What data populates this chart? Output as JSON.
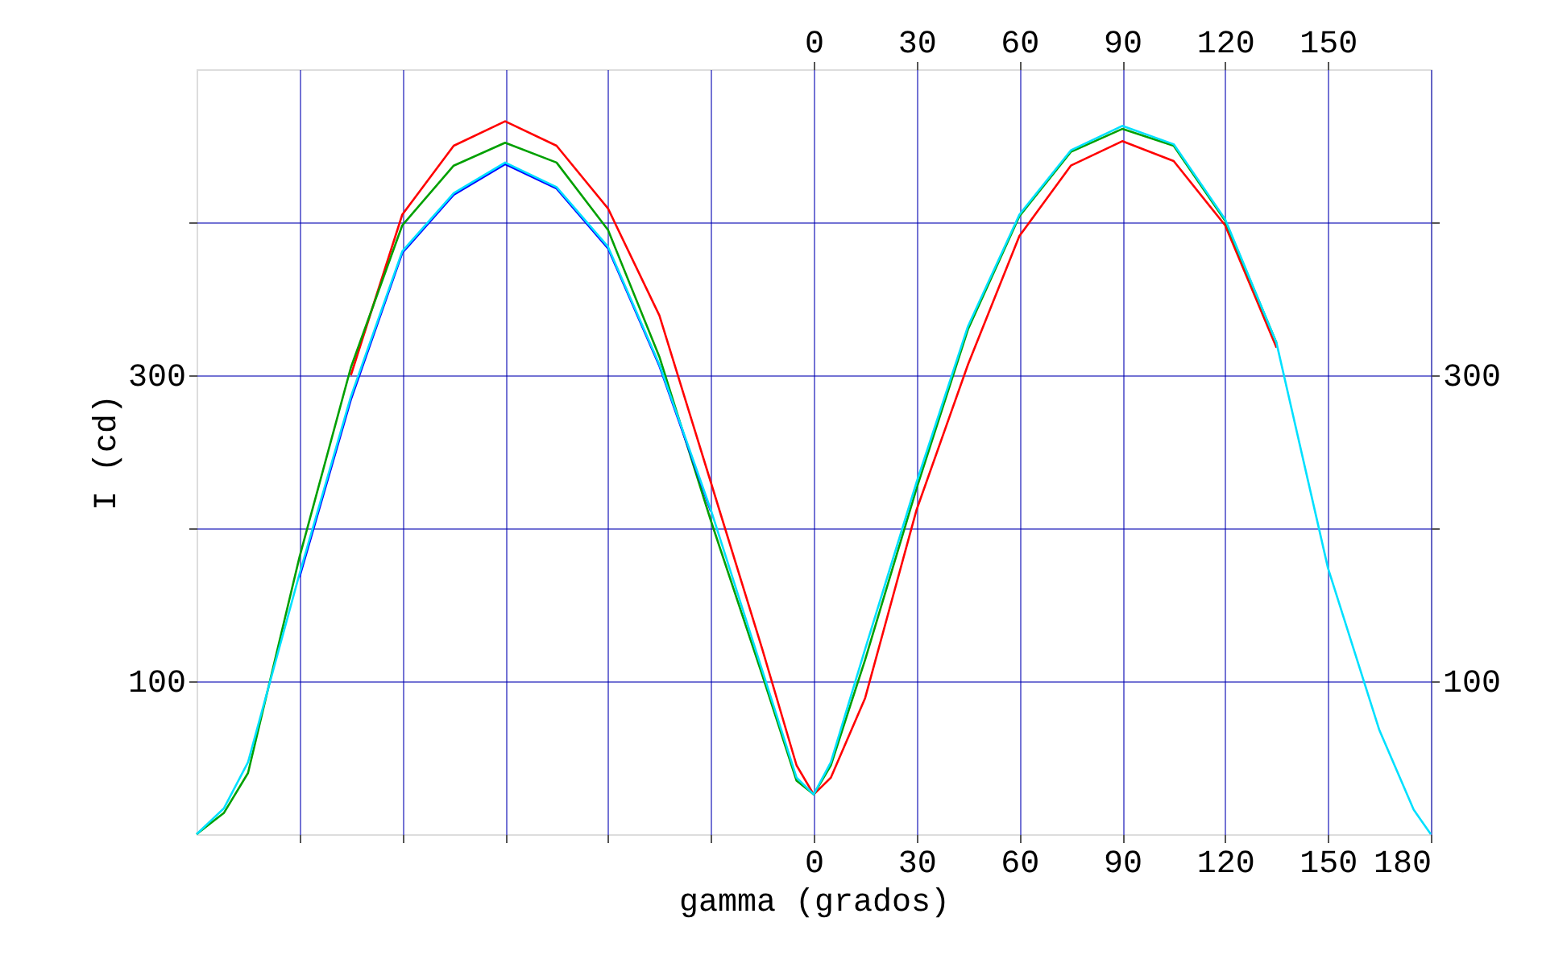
{
  "chart_data": {
    "type": "line",
    "xlabel": "gamma (grados)",
    "ylabel": "I (cd)",
    "x": [
      -180,
      -172,
      -165,
      -150,
      -135,
      -120,
      -105,
      -90,
      -75,
      -60,
      -45,
      -30,
      -15,
      -5,
      0,
      5,
      15,
      30,
      45,
      60,
      75,
      90,
      105,
      120,
      135,
      150,
      165,
      175,
      180
    ],
    "series": [
      {
        "color": "#ff0000",
        "values": [
          null,
          null,
          null,
          null,
          300,
          405,
          450,
          466,
          450,
          409,
          339,
          230,
          121,
          45,
          26,
          37,
          89,
          212,
          307,
          391,
          437,
          453,
          440,
          398,
          318,
          null,
          null,
          null,
          null
        ]
      },
      {
        "color": "#00a000",
        "values": [
          0,
          14,
          40,
          181,
          305,
          398,
          437,
          452,
          439,
          395,
          312,
          205,
          104,
          35,
          26,
          45,
          114,
          226,
          330,
          404,
          446,
          461,
          450,
          401,
          321,
          null,
          null,
          null,
          null
        ]
      },
      {
        "color": "#0000ff",
        "values": [
          null,
          null,
          null,
          168,
          284,
          380,
          418,
          438,
          422,
          383,
          306,
          211,
          null,
          null,
          null,
          null,
          null,
          null,
          null,
          null,
          null,
          null,
          null,
          null,
          null,
          null,
          null,
          null,
          null
        ]
      },
      {
        "color": "#00e0ff",
        "values": [
          0,
          17,
          47,
          170,
          286,
          381,
          419,
          439,
          423,
          384,
          307,
          212,
          107,
          37,
          26,
          47,
          121,
          230,
          332,
          405,
          447,
          463,
          451,
          402,
          321,
          174,
          68,
          16,
          0
        ]
      }
    ],
    "xlim": [
      -180,
      180
    ],
    "xticks": [
      {
        "value": -150,
        "label": null
      },
      {
        "value": -120,
        "label": null
      },
      {
        "value": -90,
        "label": null
      },
      {
        "value": -60,
        "label": null
      },
      {
        "value": -30,
        "label": null
      },
      0,
      30,
      60,
      90,
      120,
      150,
      180
    ],
    "x2lim": [
      -180,
      180
    ],
    "x2ticks": [
      0,
      30,
      60,
      90,
      120,
      150
    ],
    "ylim": [
      0,
      500
    ],
    "yticks": [
      100,
      {
        "value": 200,
        "label": null
      },
      300,
      {
        "value": 400,
        "label": null
      }
    ],
    "y2lim": [
      0,
      500
    ],
    "y2ticks": [
      100,
      {
        "value": 200,
        "label": null
      },
      300,
      {
        "value": 400,
        "label": null
      }
    ],
    "grid": true,
    "marker": "none",
    "line_style": "solid"
  }
}
